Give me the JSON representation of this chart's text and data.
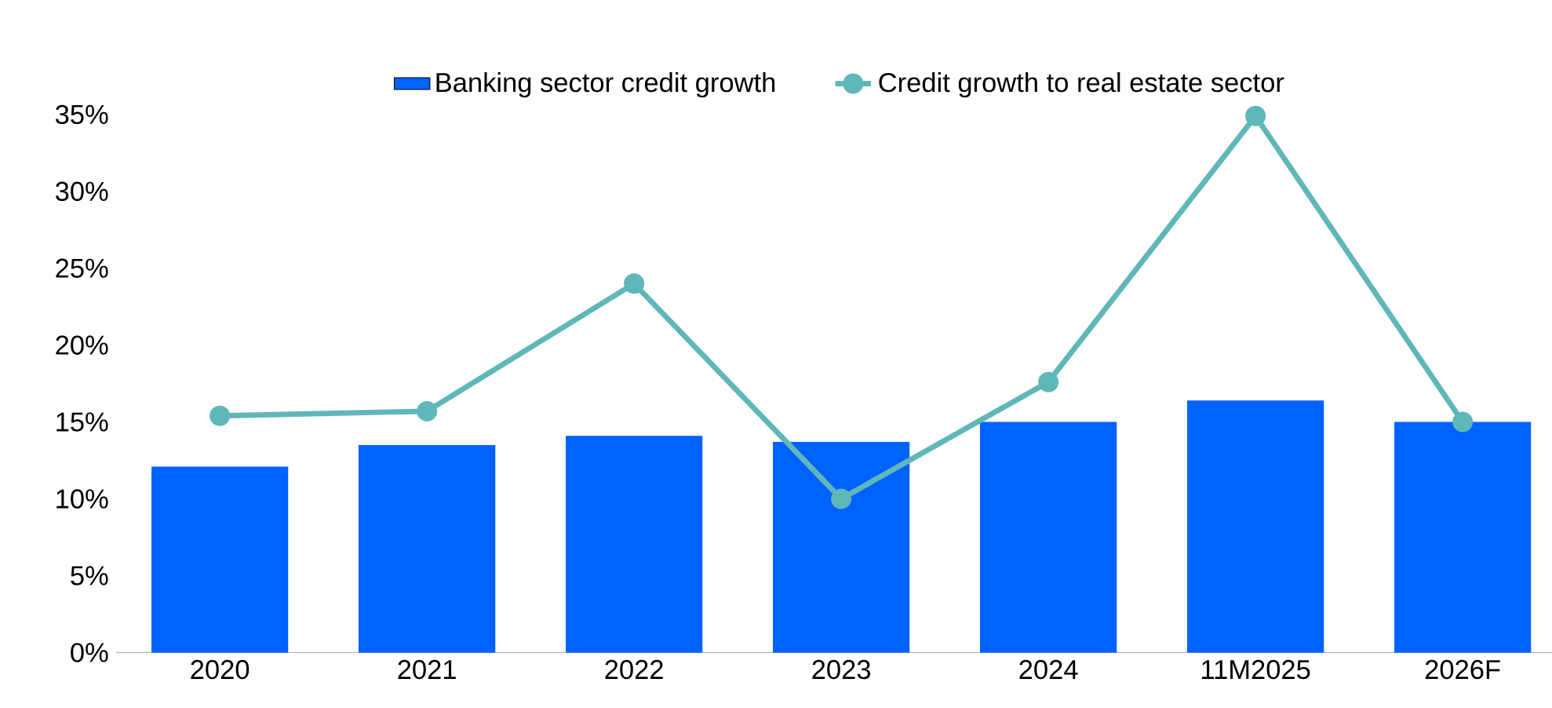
{
  "chart_data": {
    "type": "bar",
    "categories": [
      "2020",
      "2021",
      "2022",
      "2023",
      "2024",
      "11M2025",
      "2026F"
    ],
    "series": [
      {
        "name": "Banking sector credit growth",
        "color": "#0062ff",
        "values": [
          12.1,
          13.5,
          14.1,
          13.7,
          15.0,
          16.4,
          15.0
        ]
      },
      {
        "name": "Credit growth to real estate sector",
        "type": "line",
        "color": "#5fb7b9",
        "marker": "circle",
        "values": [
          15.4,
          15.7,
          24.0,
          10.0,
          17.6,
          34.9,
          15.0
        ]
      }
    ],
    "ylim": [
      0,
      35
    ],
    "yticks": [
      {
        "value": 0,
        "label": "0%"
      },
      {
        "value": 5,
        "label": "5%"
      },
      {
        "value": 10,
        "label": "10%"
      },
      {
        "value": 15,
        "label": "15%"
      },
      {
        "value": 20,
        "label": "20%"
      },
      {
        "value": 25,
        "label": "25%"
      },
      {
        "value": 30,
        "label": "30%"
      },
      {
        "value": 35,
        "label": "35%"
      }
    ],
    "legend": "top",
    "grid": false
  }
}
